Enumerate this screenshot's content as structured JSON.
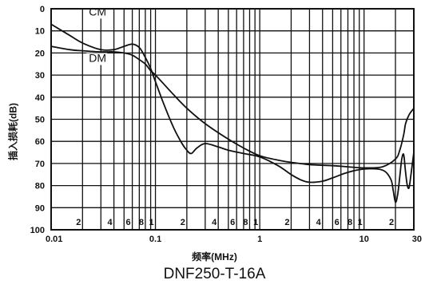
{
  "chart_data": {
    "type": "line",
    "x_scale": "log",
    "xlim": [
      0.01,
      30
    ],
    "ylim": [
      0,
      100
    ],
    "y_inverted": true,
    "xlabel": "频率(MHz)",
    "ylabel": "插入损耗(dB)",
    "caption": "DNF250-T-16A",
    "grid": true,
    "y_ticks": [
      "0",
      "10",
      "20",
      "30",
      "40",
      "50",
      "60",
      "70",
      "80",
      "90",
      "100"
    ],
    "x_major_ticks": [
      {
        "value": 0.01,
        "label": "0.01"
      },
      {
        "value": 0.1,
        "label": "0.1"
      },
      {
        "value": 1,
        "label": "1"
      },
      {
        "value": 10,
        "label": "10"
      },
      {
        "value": 30,
        "label": "30"
      }
    ],
    "x_minor_ticks": [
      {
        "value": 0.02,
        "label": "2"
      },
      {
        "value": 0.04,
        "label": "4"
      },
      {
        "value": 0.06,
        "label": "6"
      },
      {
        "value": 0.08,
        "label": "8"
      },
      {
        "value": 0.1,
        "label": "1"
      },
      {
        "value": 0.2,
        "label": "2"
      },
      {
        "value": 0.4,
        "label": "4"
      },
      {
        "value": 0.6,
        "label": "6"
      },
      {
        "value": 0.8,
        "label": "8"
      },
      {
        "value": 1,
        "label": "1"
      },
      {
        "value": 2,
        "label": "2"
      },
      {
        "value": 4,
        "label": "4"
      },
      {
        "value": 6,
        "label": "6"
      },
      {
        "value": 8,
        "label": "8"
      },
      {
        "value": 10,
        "label": "1"
      },
      {
        "value": 20,
        "label": "2"
      }
    ],
    "x_grid_lines": [
      0.02,
      0.03,
      0.04,
      0.05,
      0.06,
      0.07,
      0.08,
      0.09,
      0.1,
      0.2,
      0.3,
      0.4,
      0.5,
      0.6,
      0.7,
      0.8,
      0.9,
      1,
      2,
      3,
      4,
      5,
      6,
      7,
      8,
      9,
      10,
      20
    ],
    "series": [
      {
        "name": "CM",
        "label_at": [
          0.023,
          3
        ],
        "x": [
          0.01,
          0.015,
          0.02,
          0.03,
          0.04,
          0.05,
          0.06,
          0.07,
          0.08,
          0.09,
          0.1,
          0.12,
          0.15,
          0.18,
          0.2,
          0.22,
          0.25,
          0.3,
          0.4,
          0.5,
          0.7,
          1,
          1.5,
          2,
          2.5,
          3,
          4,
          5,
          7,
          10,
          15,
          18,
          19,
          20,
          21,
          22,
          23,
          24,
          25,
          26,
          27,
          28,
          30
        ],
        "y": [
          7,
          12,
          15.5,
          18.5,
          18.5,
          17,
          16,
          17.5,
          22,
          27,
          33,
          43,
          54,
          61,
          64,
          65.5,
          63,
          61,
          62.5,
          64,
          65.5,
          67,
          71,
          75,
          77.5,
          78.5,
          78,
          76.5,
          74,
          72.5,
          73,
          77,
          82,
          87.5,
          84,
          76,
          68,
          66,
          74,
          80,
          81,
          76,
          65
        ]
      },
      {
        "name": "DM",
        "label_at": [
          0.023,
          24
        ],
        "x": [
          0.01,
          0.015,
          0.02,
          0.03,
          0.04,
          0.05,
          0.06,
          0.07,
          0.08,
          0.09,
          0.1,
          0.12,
          0.15,
          0.2,
          0.3,
          0.5,
          0.7,
          1,
          1.5,
          2,
          3,
          5,
          7,
          10,
          15,
          20,
          22,
          24,
          25,
          27,
          30
        ],
        "y": [
          17,
          18.5,
          19,
          19.5,
          19.5,
          20,
          21,
          23,
          25,
          28,
          30,
          34,
          39,
          45,
          52,
          59,
          63,
          66.5,
          68.5,
          69.5,
          70.5,
          71,
          71.5,
          72,
          71.5,
          68,
          64,
          57,
          52,
          48,
          45
        ]
      }
    ]
  }
}
